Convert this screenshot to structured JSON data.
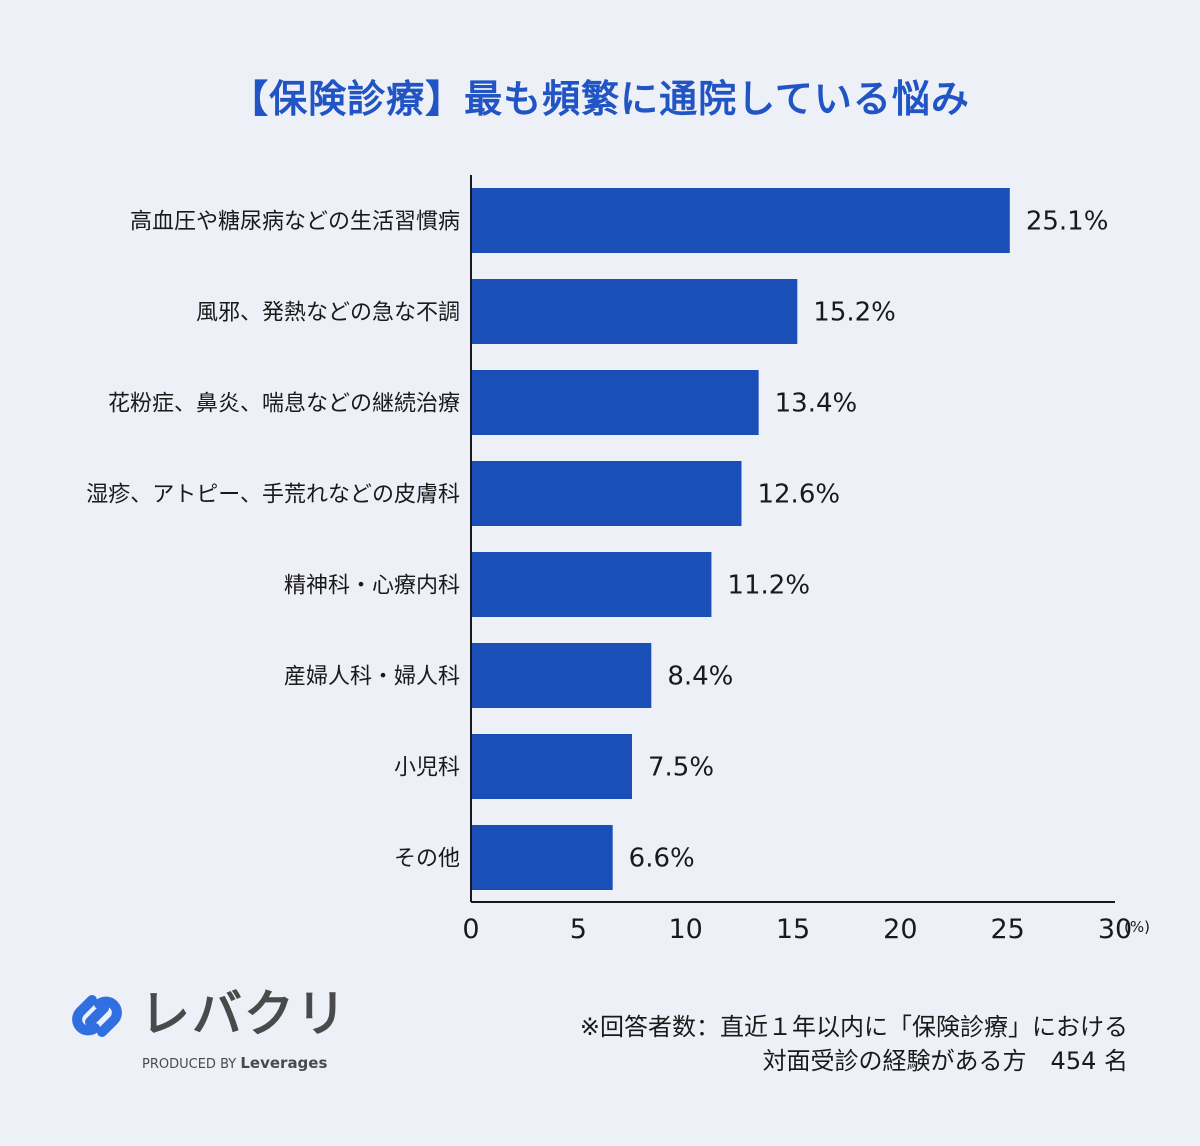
{
  "chart_data": {
    "type": "bar",
    "orientation": "horizontal",
    "title": "【保険診療】最も頻繁に通院している悩み",
    "categories": [
      "高血圧や糖尿病などの生活習慣病",
      "風邪、発熱などの急な不調",
      "花粉症、鼻炎、喘息などの継続治療",
      "湿疹、アトピー、手荒れなどの皮膚科",
      "精神科・心療内科",
      "産婦人科・婦人科",
      "小児科",
      "その他"
    ],
    "values": [
      25.1,
      15.2,
      13.4,
      12.6,
      11.2,
      8.4,
      7.5,
      6.6
    ],
    "value_labels": [
      "25.1%",
      "15.2%",
      "13.4%",
      "12.6%",
      "11.2%",
      "8.4%",
      "7.5%",
      "6.6%"
    ],
    "xlim": [
      0,
      30
    ],
    "xticks": [
      0,
      5,
      10,
      15,
      20,
      25,
      30
    ],
    "xunit": "(%)",
    "bar_color": "#1a4fb8",
    "grid": false
  },
  "logo": {
    "name": "レバクリ",
    "produced_by": "PRODUCED BY",
    "company": "Leverages",
    "icon": "link-chain-icon",
    "color": "#2f6fe0"
  },
  "footnote": {
    "line1": "※回答者数：直近１年以内に「保険診療」における",
    "line2": "対面受診の経験がある方　454 名"
  }
}
